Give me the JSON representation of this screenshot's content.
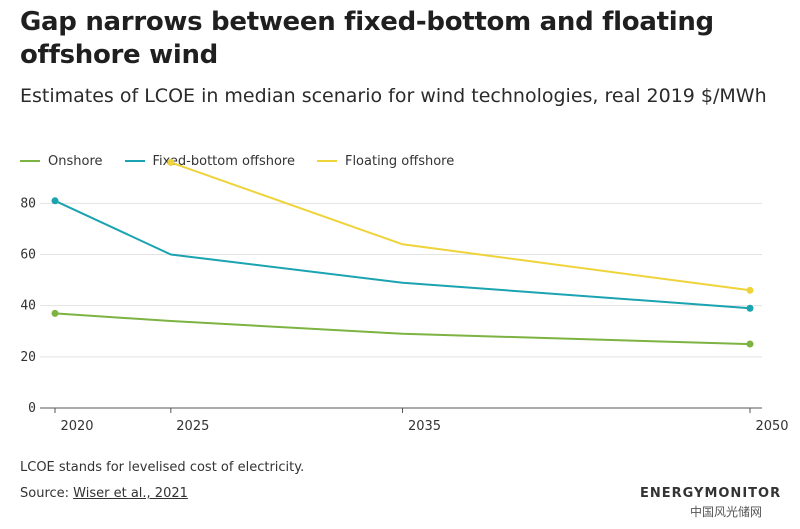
{
  "header": {
    "title": "Gap narrows between fixed-bottom and floating offshore wind",
    "subtitle": "Estimates of LCOE in median scenario for wind technologies, real 2019 $/MWh"
  },
  "footer": {
    "note": "LCOE stands for levelised cost of electricity.",
    "source_prefix": "Source: ",
    "source_link": "Wiser et al., 2021",
    "brand": "ENERGYMONITOR",
    "watermark": "中国风光储网"
  },
  "chart_data": {
    "type": "line",
    "title": "Gap narrows between fixed-bottom and floating offshore wind",
    "subtitle": "Estimates of LCOE in median scenario for wind technologies, real 2019 $/MWh",
    "xlim": [
      2020,
      2050
    ],
    "ylim": [
      0,
      95
    ],
    "x_ticks": [
      2020,
      2025,
      2035,
      2050
    ],
    "y_ticks": [
      0,
      20,
      40,
      60,
      80
    ],
    "grid": true,
    "legend_position": "top-left",
    "series": [
      {
        "name": "Onshore",
        "color": "#7cb342",
        "points": [
          {
            "x": 2020,
            "y": 37
          },
          {
            "x": 2025,
            "y": 34
          },
          {
            "x": 2035,
            "y": 29
          },
          {
            "x": 2050,
            "y": 25
          }
        ]
      },
      {
        "name": "Fixed-bottom offshore",
        "color": "#1aa3b0",
        "points": [
          {
            "x": 2020,
            "y": 81
          },
          {
            "x": 2025,
            "y": 60
          },
          {
            "x": 2035,
            "y": 49
          },
          {
            "x": 2050,
            "y": 39
          }
        ]
      },
      {
        "name": "Floating offshore",
        "color": "#efd33a",
        "points": [
          {
            "x": 2025,
            "y": 96
          },
          {
            "x": 2035,
            "y": 64
          },
          {
            "x": 2050,
            "y": 46
          }
        ]
      }
    ]
  }
}
